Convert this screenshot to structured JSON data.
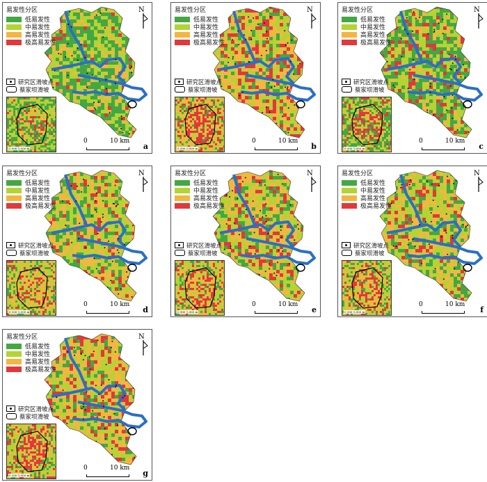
{
  "legend": {
    "title": "易发性分区",
    "classes": [
      {
        "label": "低易发性",
        "color": "#43a843"
      },
      {
        "label": "中易发性",
        "color": "#b4d334"
      },
      {
        "label": "高易发性",
        "color": "#f2b740"
      },
      {
        "label": "极高易发性",
        "color": "#e2383b"
      }
    ],
    "symbols": [
      {
        "label": "研究区滑坡点",
        "icon": "landslide-point-icon"
      },
      {
        "label": "蔡家坝滑坡",
        "icon": "caijiaba-outline-icon"
      }
    ]
  },
  "north_label": "N",
  "scale": {
    "start": "0",
    "end": "10 km"
  },
  "inset_scale": "0  500 1,000 m",
  "river_color": "#2a6fc7",
  "panels": [
    {
      "letter": "a",
      "mix": [
        0.45,
        0.35,
        0.15,
        0.05
      ]
    },
    {
      "letter": "b",
      "mix": [
        0.12,
        0.3,
        0.35,
        0.23
      ]
    },
    {
      "letter": "c",
      "mix": [
        0.4,
        0.35,
        0.12,
        0.13
      ]
    },
    {
      "letter": "d",
      "mix": [
        0.2,
        0.38,
        0.3,
        0.12
      ]
    },
    {
      "letter": "e",
      "mix": [
        0.18,
        0.35,
        0.32,
        0.15
      ]
    },
    {
      "letter": "f",
      "mix": [
        0.2,
        0.36,
        0.3,
        0.14
      ]
    },
    {
      "letter": "g",
      "mix": [
        0.15,
        0.33,
        0.32,
        0.2
      ]
    }
  ]
}
